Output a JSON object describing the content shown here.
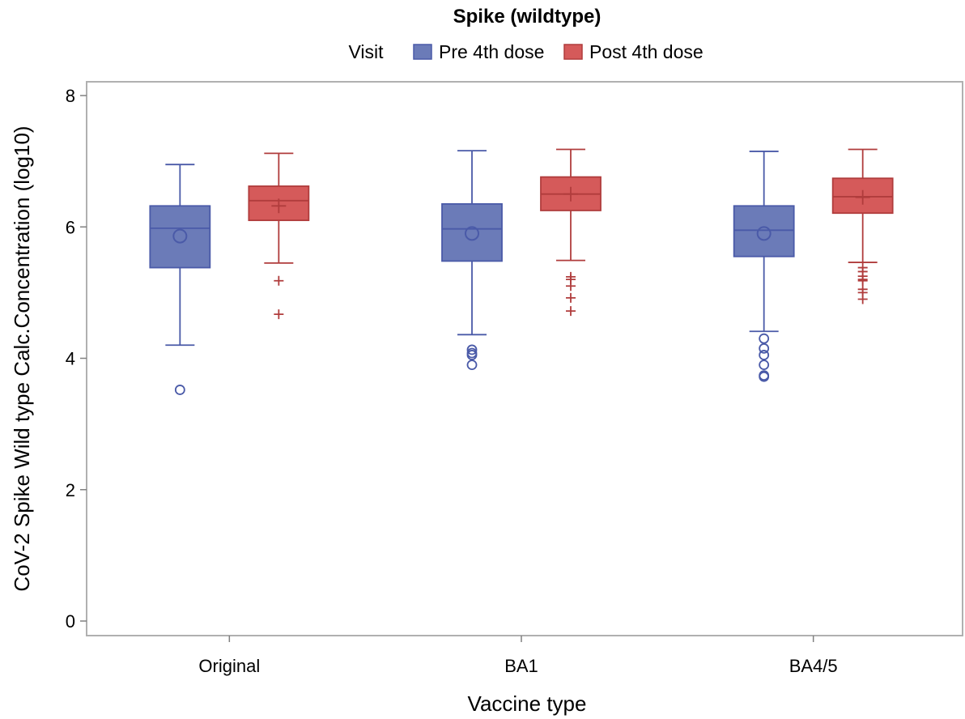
{
  "chart_data": {
    "type": "box",
    "title": "Spike (wildtype)",
    "xlabel": "Vaccine type",
    "ylabel": "CoV-2 Spike Wild type Calc.Concentration (log10)",
    "ylim": [
      0,
      8
    ],
    "yticks": [
      0,
      2,
      4,
      6,
      8
    ],
    "legend": {
      "title": "Visit",
      "placement": "top"
    },
    "categories": [
      "Original",
      "BA1",
      "BA4/5"
    ],
    "series": [
      {
        "name": "Pre 4th dose",
        "color": "#6b7bb8",
        "edge_color": "#4a5aa8",
        "mean_marker": "circle",
        "outlier_marker": "circle",
        "boxes": [
          {
            "whisker_low": 4.2,
            "q1": 5.38,
            "median": 5.98,
            "q3": 6.32,
            "whisker_high": 6.95,
            "mean": 5.86,
            "outliers": [
              3.52
            ]
          },
          {
            "whisker_low": 4.36,
            "q1": 5.48,
            "median": 5.97,
            "q3": 6.35,
            "whisker_high": 7.16,
            "mean": 5.9,
            "outliers": [
              4.13,
              4.08,
              4.05,
              3.9
            ]
          },
          {
            "whisker_low": 4.41,
            "q1": 5.55,
            "median": 5.95,
            "q3": 6.32,
            "whisker_high": 7.15,
            "mean": 5.9,
            "outliers": [
              4.3,
              4.15,
              4.05,
              3.9,
              3.74,
              3.72
            ]
          }
        ]
      },
      {
        "name": "Post 4th dose",
        "color": "#d55a5a",
        "edge_color": "#b03c3c",
        "mean_marker": "plus",
        "outlier_marker": "plus",
        "boxes": [
          {
            "whisker_low": 5.45,
            "q1": 6.1,
            "median": 6.4,
            "q3": 6.62,
            "whisker_high": 7.12,
            "mean": 6.32,
            "outliers": [
              5.18,
              4.67
            ]
          },
          {
            "whisker_low": 5.49,
            "q1": 6.25,
            "median": 6.5,
            "q3": 6.76,
            "whisker_high": 7.18,
            "mean": 6.5,
            "outliers": [
              5.24,
              5.2,
              5.1,
              4.92,
              4.72
            ]
          },
          {
            "whisker_low": 5.46,
            "q1": 6.21,
            "median": 6.46,
            "q3": 6.74,
            "whisker_high": 7.18,
            "mean": 6.45,
            "outliers": [
              5.38,
              5.32,
              5.25,
              5.2,
              5.18,
              5.05,
              5.0,
              4.9
            ]
          }
        ]
      }
    ]
  }
}
